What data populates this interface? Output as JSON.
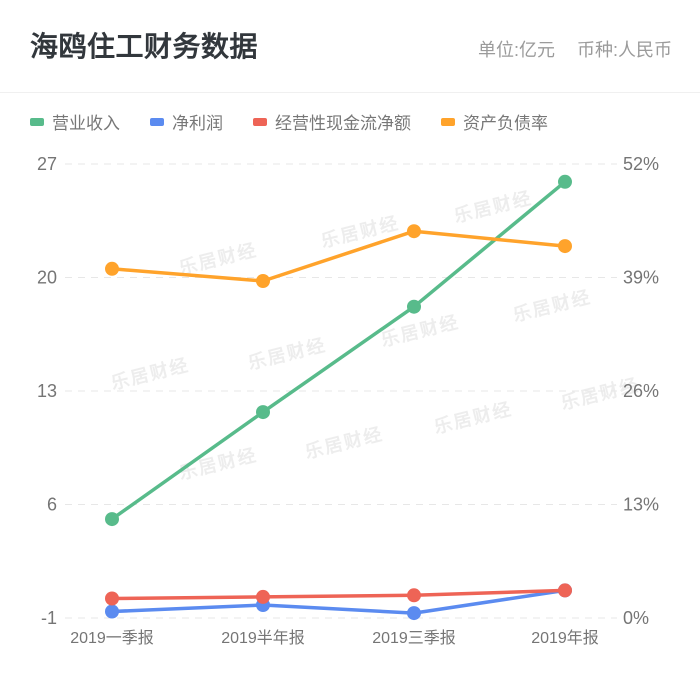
{
  "header": {
    "title": "海鸥住工财务数据",
    "unit_label": "单位:亿元",
    "currency_label": "币种:人民币"
  },
  "watermark": {
    "text": "乐居财经"
  },
  "chart_data": {
    "type": "line",
    "title": "海鸥住工财务数据",
    "categories": [
      "2019一季报",
      "2019半年报",
      "2019三季报",
      "2019年报"
    ],
    "series": [
      {
        "name": "营业收入",
        "axis": "left",
        "color": "#58bb8b",
        "values": [
          5.1,
          11.7,
          18.2,
          25.9
        ]
      },
      {
        "name": "净利润",
        "axis": "left",
        "color": "#5b8bf0",
        "values": [
          -0.6,
          -0.2,
          -0.7,
          0.7
        ]
      },
      {
        "name": "经营性现金流净额",
        "axis": "left",
        "color": "#ee6456",
        "values": [
          0.2,
          0.3,
          0.4,
          0.7
        ]
      },
      {
        "name": "资产负债率",
        "axis": "right",
        "color": "#ffa32b",
        "values": [
          40.0,
          38.6,
          44.3,
          42.6
        ]
      }
    ],
    "left_axis": {
      "min": -1,
      "max": 27,
      "ticks": [
        "27",
        "20",
        "13",
        "6",
        "-1"
      ]
    },
    "right_axis": {
      "min": 0,
      "max": 52,
      "ticks": [
        "52%",
        "39%",
        "26%",
        "13%",
        "0%"
      ]
    },
    "grid": "dashed horizontal gridlines",
    "legend_position": "top-left",
    "grid_color": "#e7e7e7"
  }
}
